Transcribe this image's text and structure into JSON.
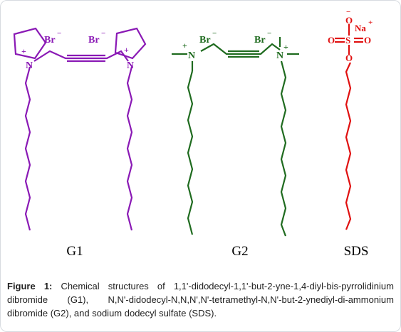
{
  "labels": {
    "g1": "G1",
    "g2": "G2",
    "sds": "SDS"
  },
  "atoms": {
    "nitrogen": "N",
    "plus": "+",
    "bromide": "Br",
    "minus": "−",
    "sodium": "Na",
    "sulfur": "S",
    "oxygen": "O"
  },
  "caption": {
    "prefix": "Figure 1:",
    "text": " Chemical structures of 1,1'-didodecyl-1,1'-but-2-yne-1,4-diyl-bis-pyrrolidinium dibromide (G1), N,N'-didodecyl-N,N,N',N'-tetramethyl-N,N'-but-2-ynediyl-di-ammonium dibromide (G2), and sodium dodecyl sulfate (SDS)."
  },
  "colors": {
    "g1": "#8a19b5",
    "g2": "#1f6b1f",
    "sds": "#e01010",
    "caption_text": "#222222",
    "frame": "#d7dbe0"
  }
}
